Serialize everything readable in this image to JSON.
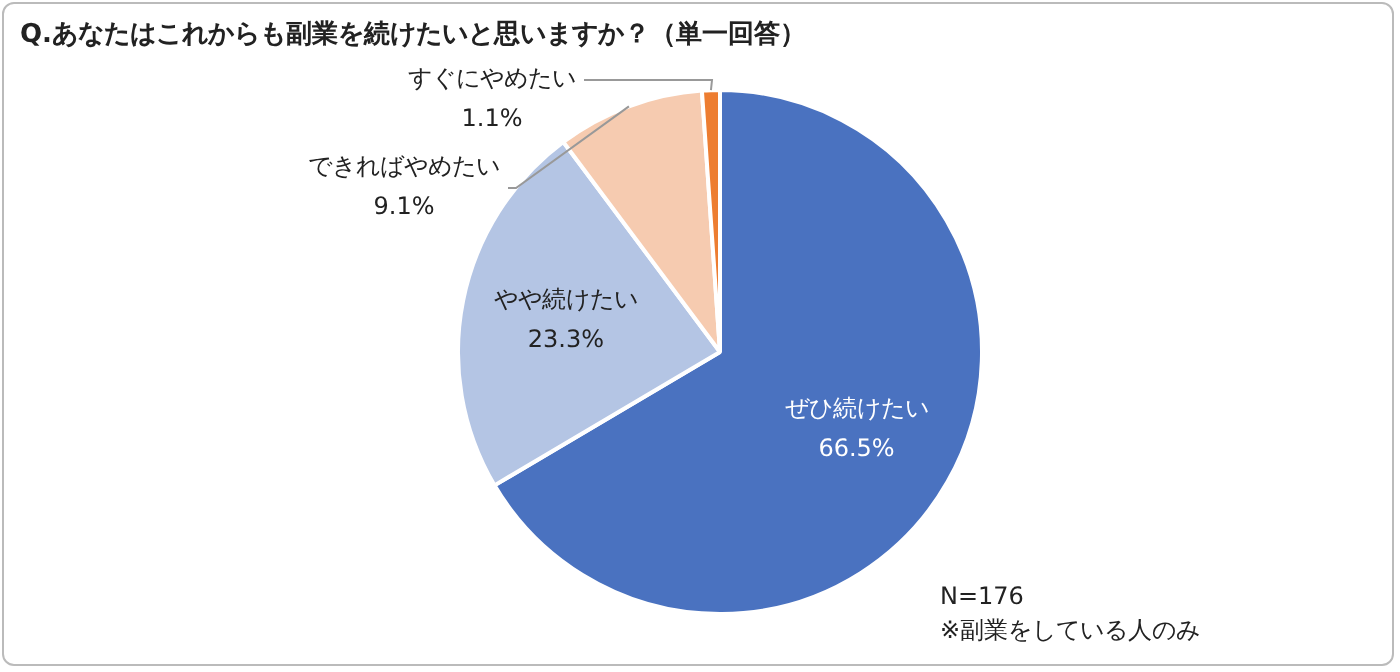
{
  "chart_data": {
    "type": "pie",
    "title": "Q.あなたはこれからも副業を続けたいと思いますか？（単一回答）",
    "categories": [
      "ぜひ続けたい",
      "やや続けたい",
      "できればやめたい",
      "すぐにやめたい"
    ],
    "values": [
      66.5,
      23.3,
      9.1,
      1.1
    ],
    "colors": [
      "#4a72c0",
      "#b4c5e4",
      "#f6cbb0",
      "#ed7d31"
    ],
    "value_labels": [
      "66.5%",
      "23.3%",
      "9.1%",
      "1.1%"
    ],
    "legend": false,
    "annotations": [
      "N=176",
      "※副業をしている人のみ"
    ]
  }
}
